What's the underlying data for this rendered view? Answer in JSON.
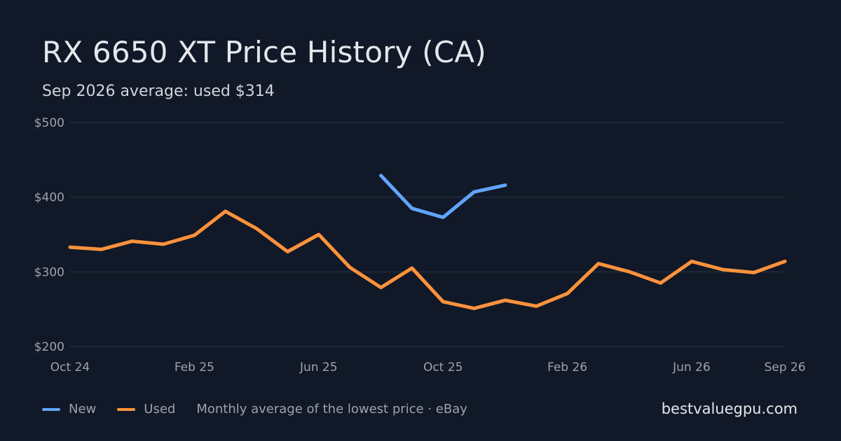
{
  "header": {
    "title": "RX 6650 XT Price History (CA)",
    "subtitle": "Sep 2026 average: used $314"
  },
  "legend": {
    "items": [
      {
        "label": "New",
        "color": "#60a5fa"
      },
      {
        "label": "Used",
        "color": "#fb923c"
      }
    ],
    "note": "Monthly average of the lowest price · eBay"
  },
  "brand": "bestvaluegpu.com",
  "chart_data": {
    "type": "line",
    "x": [
      "2024-10",
      "2024-11",
      "2024-12",
      "2025-01",
      "2025-02",
      "2025-03",
      "2025-04",
      "2025-05",
      "2025-06",
      "2025-07",
      "2025-08",
      "2025-09",
      "2025-10",
      "2025-11",
      "2025-12",
      "2026-01",
      "2026-02",
      "2026-03",
      "2026-04",
      "2026-05",
      "2026-06",
      "2026-07",
      "2026-08",
      "2026-09"
    ],
    "x_tick_labels": [
      {
        "at": "2024-10",
        "label": "Oct 24"
      },
      {
        "at": "2025-02",
        "label": "Feb 25"
      },
      {
        "at": "2025-06",
        "label": "Jun 25"
      },
      {
        "at": "2025-10",
        "label": "Oct 25"
      },
      {
        "at": "2026-02",
        "label": "Feb 26"
      },
      {
        "at": "2026-06",
        "label": "Jun 26"
      },
      {
        "at": "2026-09",
        "label": "Sep 26"
      }
    ],
    "y_ticks": [
      {
        "value": 200,
        "label": "$200"
      },
      {
        "value": 300,
        "label": "$300"
      },
      {
        "value": 400,
        "label": "$400"
      },
      {
        "value": 500,
        "label": "$500"
      }
    ],
    "ylim": [
      200,
      500
    ],
    "grid": true,
    "legend_position": "bottom-left",
    "series": [
      {
        "name": "New",
        "color": "#60a5fa",
        "values": [
          null,
          null,
          null,
          null,
          null,
          null,
          null,
          null,
          null,
          null,
          429,
          385,
          373,
          407,
          416,
          null,
          null,
          null,
          null,
          null,
          null,
          null,
          null,
          null
        ]
      },
      {
        "name": "Used",
        "color": "#fb923c",
        "values": [
          333,
          330,
          341,
          337,
          349,
          381,
          358,
          327,
          350,
          306,
          279,
          305,
          260,
          251,
          262,
          254,
          271,
          311,
          300,
          285,
          314,
          303,
          299,
          314
        ]
      }
    ]
  }
}
